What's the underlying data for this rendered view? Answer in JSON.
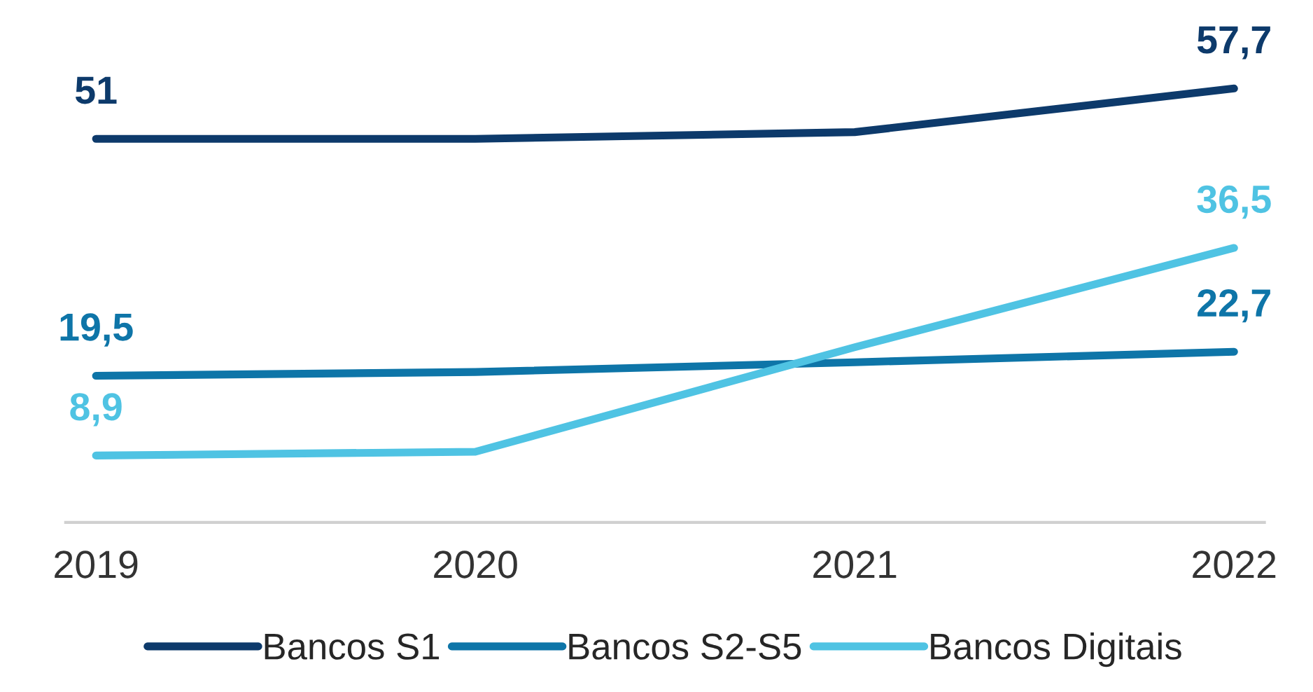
{
  "chart_data": {
    "type": "line",
    "categories": [
      "2019",
      "2020",
      "2021",
      "2022"
    ],
    "grid": false,
    "legend": "bottom",
    "marker": "none",
    "line_style": "solid",
    "series": [
      {
        "name": "Bancos S1",
        "color": "#0d3a6b",
        "values": [
          51,
          51,
          51.9,
          57.7
        ],
        "value_labels": [
          "51",
          null,
          null,
          "57,7"
        ]
      },
      {
        "name": "Bancos S2-S5",
        "color": "#0e75a8",
        "values": [
          19.5,
          20.0,
          21.3,
          22.7
        ],
        "value_labels": [
          "19,5",
          null,
          null,
          "22,7"
        ]
      },
      {
        "name": "Bancos Digitais",
        "color": "#4fc3e3",
        "values": [
          8.9,
          9.4,
          23.3,
          36.5
        ],
        "value_labels": [
          "8,9",
          null,
          null,
          "36,5"
        ]
      }
    ]
  }
}
